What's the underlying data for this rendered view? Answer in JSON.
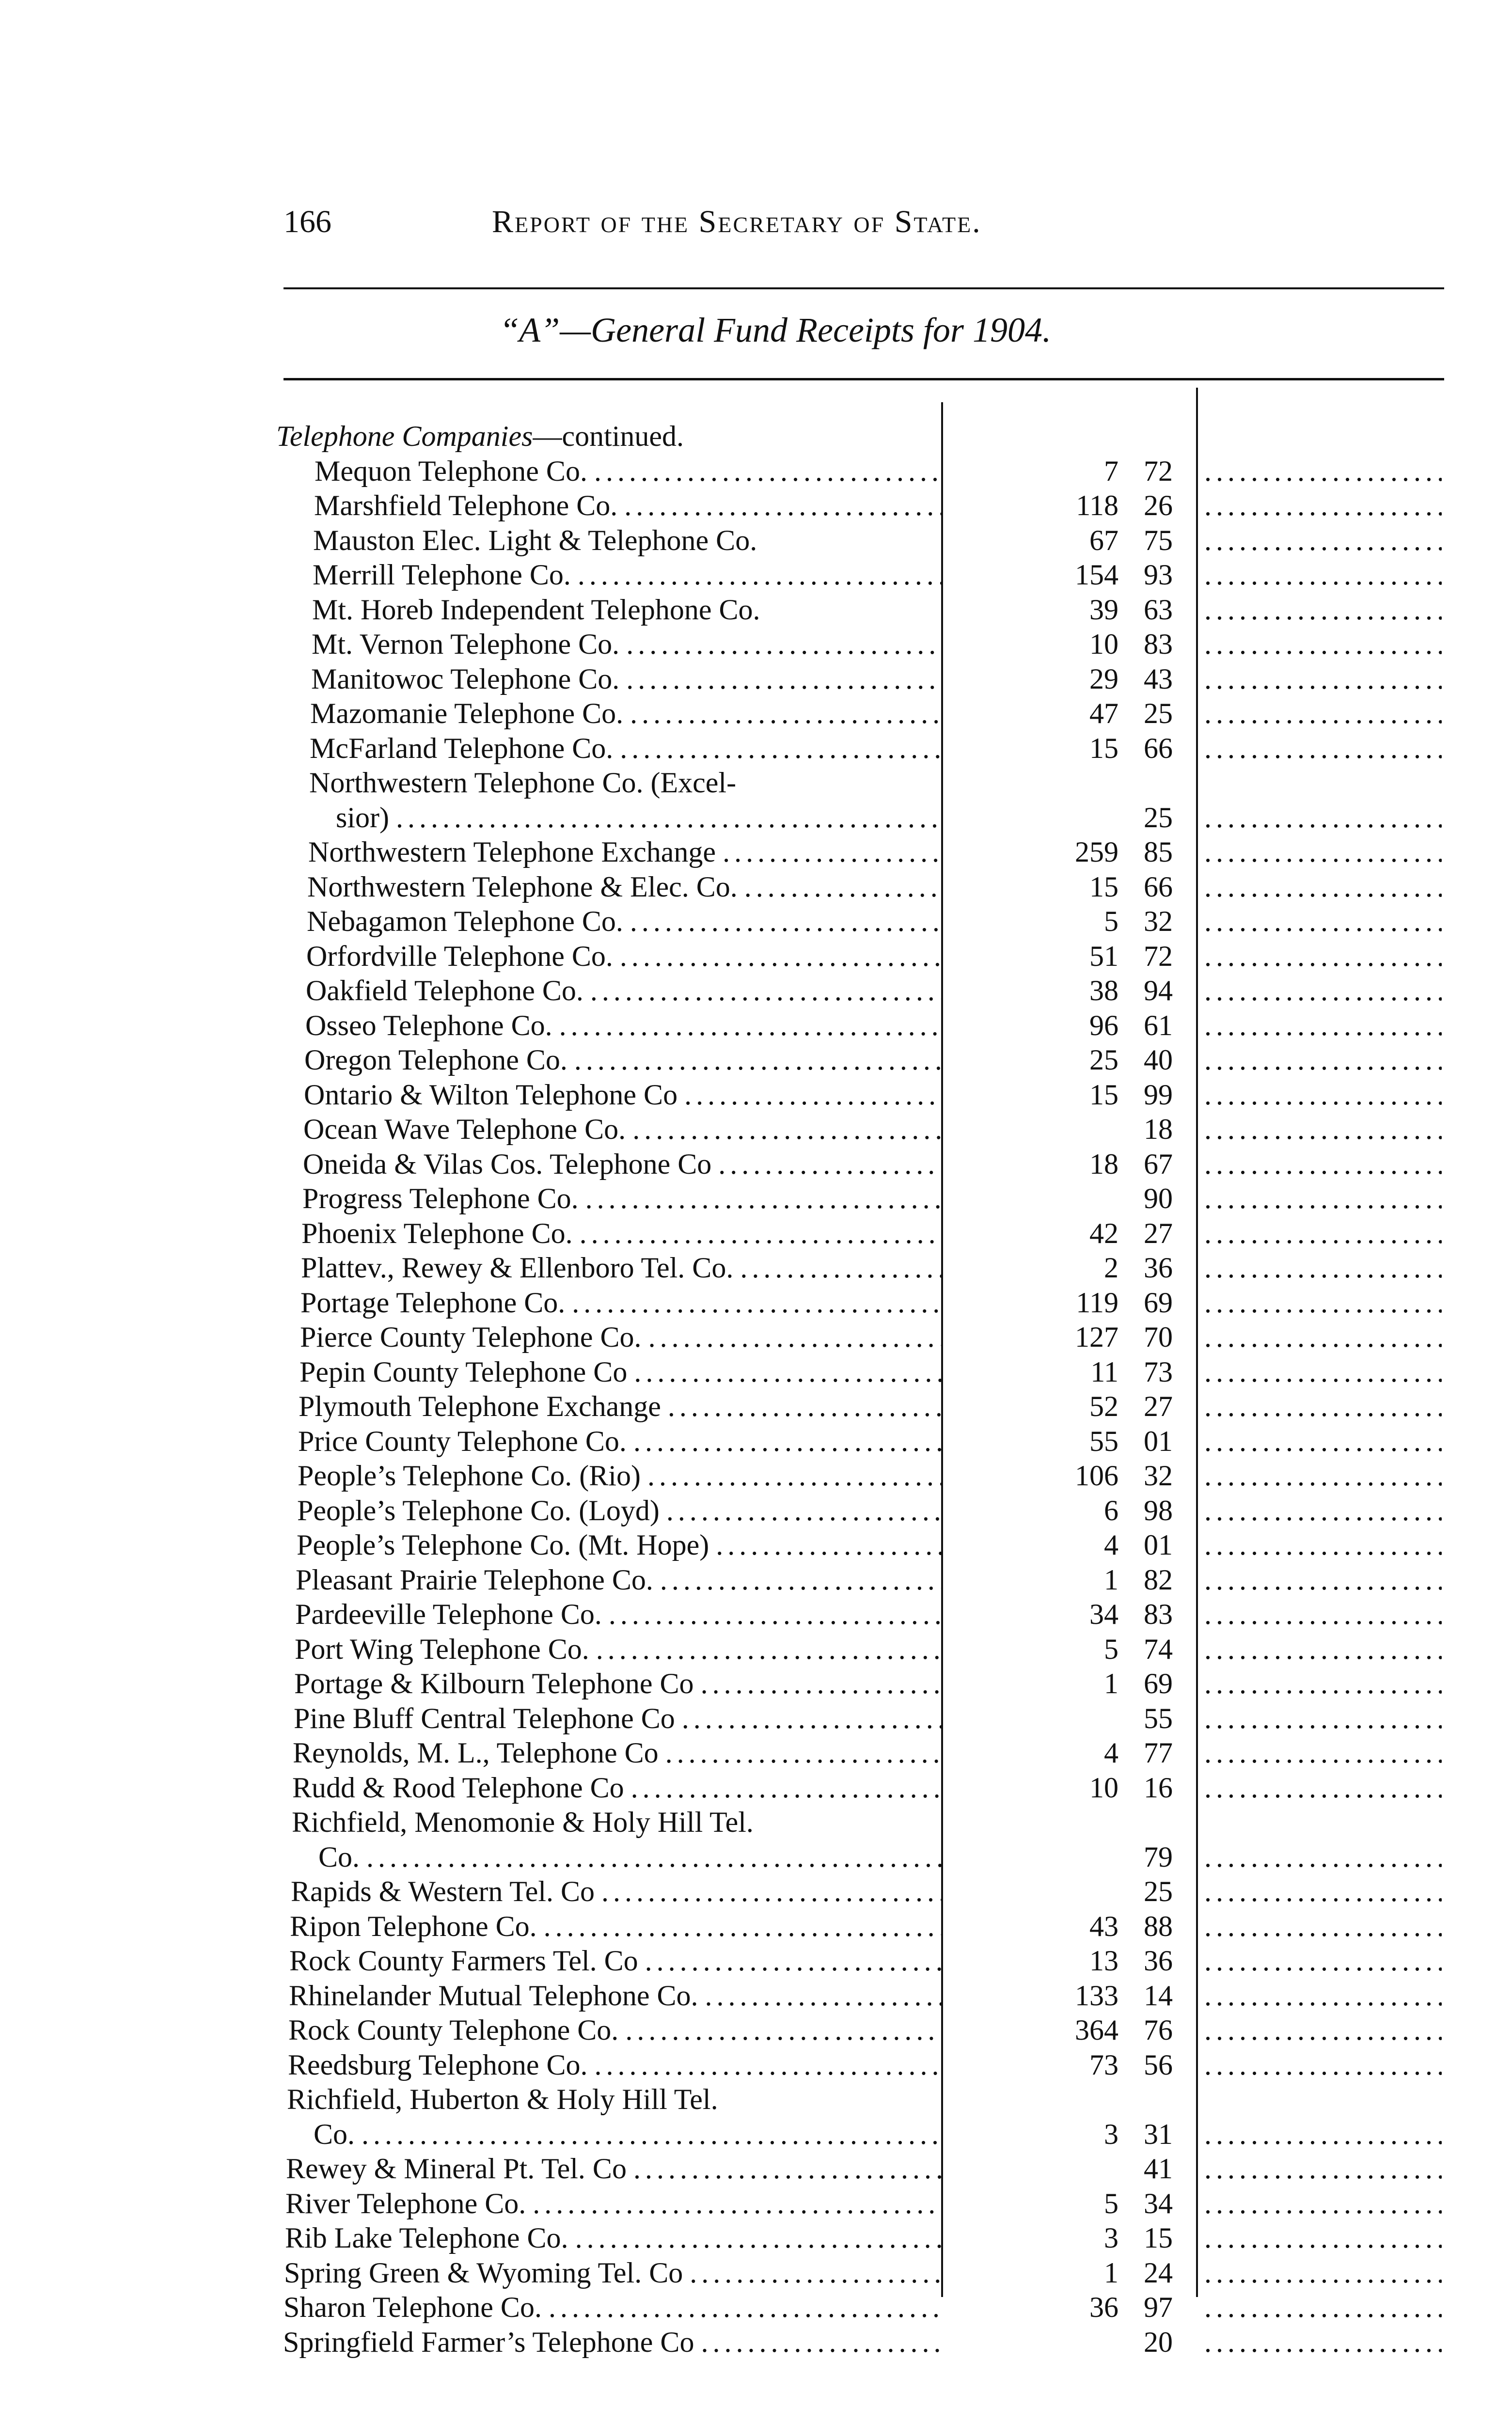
{
  "header": {
    "page_number": "166",
    "running_title": "Report of the Secretary of State."
  },
  "subtitle": "“A”—General Fund Receipts for 1904.",
  "section": {
    "title": "Telephone Companies",
    "suffix": "—continued."
  },
  "rows": [
    {
      "name": "Mequon Telephone Co.",
      "dollars": "7",
      "cents": "72"
    },
    {
      "name": "Marshfield Telephone Co.",
      "dollars": "118",
      "cents": "26"
    },
    {
      "name": "Mauston Elec. Light & Telephone Co.",
      "dollars": "67",
      "cents": "75",
      "nodots": true
    },
    {
      "name": "Merrill Telephone Co.",
      "dollars": "154",
      "cents": "93"
    },
    {
      "name": "Mt. Horeb Independent Telephone Co.",
      "dollars": "39",
      "cents": "63",
      "nodots": true
    },
    {
      "name": "Mt. Vernon Telephone Co.",
      "dollars": "10",
      "cents": "83"
    },
    {
      "name": "Manitowoc Telephone Co.",
      "dollars": "29",
      "cents": "43"
    },
    {
      "name": "Mazomanie Telephone Co.",
      "dollars": "47",
      "cents": "25"
    },
    {
      "name": "McFarland Telephone Co.",
      "dollars": "15",
      "cents": "66"
    },
    {
      "name": "Northwestern Telephone Co. (Excel-",
      "cont": "sior)",
      "dollars": "",
      "cents": "25"
    },
    {
      "name": "Northwestern Telephone Exchange",
      "dollars": "259",
      "cents": "85"
    },
    {
      "name": "Northwestern Telephone & Elec. Co.",
      "dollars": "15",
      "cents": "66"
    },
    {
      "name": "Nebagamon Telephone Co.",
      "dollars": "5",
      "cents": "32"
    },
    {
      "name": "Orfordville Telephone Co.",
      "dollars": "51",
      "cents": "72"
    },
    {
      "name": "Oakfield Telephone Co.",
      "dollars": "38",
      "cents": "94"
    },
    {
      "name": "Osseo Telephone Co.",
      "dollars": "96",
      "cents": "61"
    },
    {
      "name": "Oregon Telephone Co.",
      "dollars": "25",
      "cents": "40"
    },
    {
      "name": "Ontario & Wilton Telephone Co",
      "dollars": "15",
      "cents": "99"
    },
    {
      "name": "Ocean Wave Telephone Co.",
      "dollars": "",
      "cents": "18"
    },
    {
      "name": "Oneida & Vilas Cos. Telephone Co",
      "dollars": "18",
      "cents": "67"
    },
    {
      "name": "Progress Telephone Co.",
      "dollars": "",
      "cents": "90"
    },
    {
      "name": "Phoenix Telephone Co.",
      "dollars": "42",
      "cents": "27"
    },
    {
      "name": "Plattev., Rewey & Ellenboro Tel. Co.",
      "dollars": "2",
      "cents": "36"
    },
    {
      "name": "Portage Telephone Co.",
      "dollars": "119",
      "cents": "69"
    },
    {
      "name": "Pierce County Telephone Co.",
      "dollars": "127",
      "cents": "70"
    },
    {
      "name": "Pepin County Telephone Co",
      "dollars": "11",
      "cents": "73"
    },
    {
      "name": "Plymouth Telephone Exchange",
      "dollars": "52",
      "cents": "27"
    },
    {
      "name": "Price County Telephone Co.",
      "dollars": "55",
      "cents": "01"
    },
    {
      "name": "People’s Telephone Co. (Rio)",
      "dollars": "106",
      "cents": "32"
    },
    {
      "name": "People’s Telephone Co. (Loyd)",
      "dollars": "6",
      "cents": "98"
    },
    {
      "name": "People’s Telephone Co. (Mt. Hope)",
      "dollars": "4",
      "cents": "01"
    },
    {
      "name": "Pleasant Prairie Telephone Co.",
      "dollars": "1",
      "cents": "82"
    },
    {
      "name": "Pardeeville Telephone Co.",
      "dollars": "34",
      "cents": "83"
    },
    {
      "name": "Port Wing Telephone Co.",
      "dollars": "5",
      "cents": "74"
    },
    {
      "name": "Portage & Kilbourn Telephone Co",
      "dollars": "1",
      "cents": "69"
    },
    {
      "name": "Pine Bluff Central Telephone Co",
      "dollars": "",
      "cents": "55"
    },
    {
      "name": "Reynolds, M. L., Telephone Co",
      "dollars": "4",
      "cents": "77"
    },
    {
      "name": "Rudd & Rood Telephone Co",
      "dollars": "10",
      "cents": "16"
    },
    {
      "name": "Richfield, Menomonie & Holy Hill Tel.",
      "cont": "Co.",
      "dollars": "",
      "cents": "79"
    },
    {
      "name": "Rapids & Western Tel. Co",
      "dollars": "",
      "cents": "25"
    },
    {
      "name": "Ripon Telephone Co.",
      "dollars": "43",
      "cents": "88"
    },
    {
      "name": "Rock County Farmers Tel. Co",
      "dollars": "13",
      "cents": "36"
    },
    {
      "name": "Rhinelander Mutual Telephone Co.",
      "dollars": "133",
      "cents": "14"
    },
    {
      "name": "Rock County Telephone Co.",
      "dollars": "364",
      "cents": "76"
    },
    {
      "name": "Reedsburg Telephone Co.",
      "dollars": "73",
      "cents": "56"
    },
    {
      "name": "Richfield, Huberton & Holy Hill Tel.",
      "cont": "Co.",
      "dollars": "3",
      "cents": "31"
    },
    {
      "name": "Rewey & Mineral Pt. Tel. Co",
      "dollars": "",
      "cents": "41"
    },
    {
      "name": "River Telephone Co.",
      "dollars": "5",
      "cents": "34"
    },
    {
      "name": "Rib Lake Telephone Co.",
      "dollars": "3",
      "cents": "15"
    },
    {
      "name": "Spring Green & Wyoming Tel. Co",
      "dollars": "1",
      "cents": "24"
    },
    {
      "name": "Sharon Telephone Co.",
      "dollars": "36",
      "cents": "97"
    },
    {
      "name": "Springfield Farmer’s Telephone Co",
      "dollars": "",
      "cents": "20"
    }
  ]
}
